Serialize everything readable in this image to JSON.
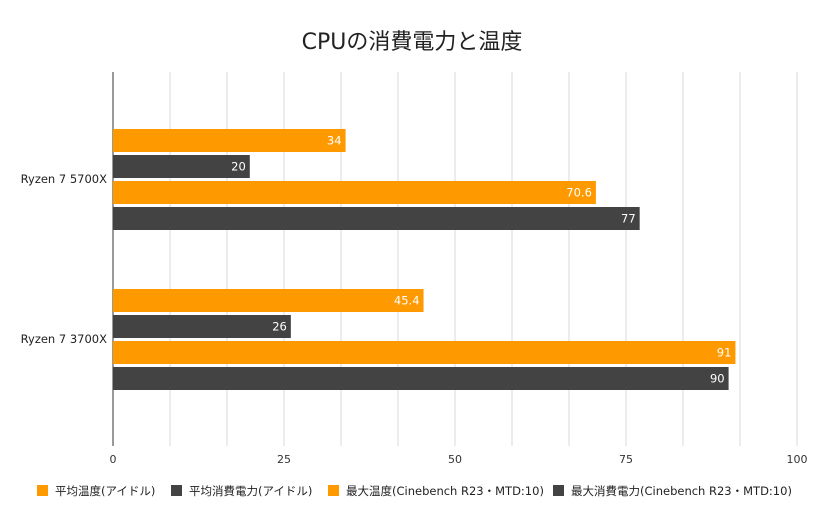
{
  "chart_data": {
    "type": "bar",
    "orientation": "horizontal",
    "title": "CPUの消費電力と温度",
    "categories": [
      "Ryzen 7 5700X",
      "Ryzen 7 3700X"
    ],
    "series": [
      {
        "name": "平均温度(アイドル)",
        "color": "#ff9900",
        "values": [
          34,
          45.4
        ]
      },
      {
        "name": "平均消費電力(アイドル)",
        "color": "#434343",
        "values": [
          20,
          26
        ]
      },
      {
        "name": "最大温度(Cinebench R23・MTD:10)",
        "color": "#ff9900",
        "values": [
          70.6,
          91
        ]
      },
      {
        "name": "最大消費電力(Cinebench R23・MTD:10)",
        "color": "#434343",
        "values": [
          77,
          90
        ]
      }
    ],
    "xlim": [
      0,
      100
    ],
    "xticks": [
      "0",
      "25",
      "50",
      "75",
      "100"
    ],
    "grid": true,
    "legend": "bottom",
    "data_labels": true
  }
}
